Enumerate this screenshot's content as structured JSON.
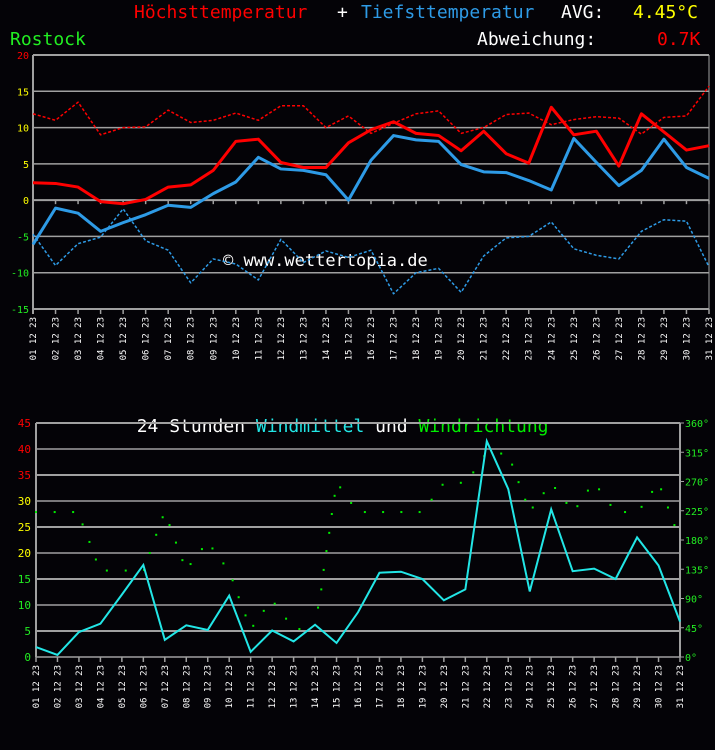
{
  "header": {
    "title_max": "Höchsttemperatur",
    "title_plus": "+",
    "title_min": "Tiefsttemperatur",
    "avg_label": "AVG:",
    "avg_value": "4.45°C",
    "location": "Rostock",
    "deviation_label": "Abweichung:",
    "deviation_value": "0.7K"
  },
  "colors": {
    "max": "#ff0000",
    "min": "#2e9be6",
    "wind": "#22e6e6",
    "direction": "#00ee00",
    "grid": "#a0a0a0"
  },
  "chart_data": [
    {
      "type": "line",
      "categories": [
        "01.12.23",
        "02.12.23",
        "03.12.23",
        "04.12.23",
        "05.12.23",
        "06.12.23",
        "07.12.23",
        "08.12.23",
        "09.12.23",
        "10.12.23",
        "11.12.23",
        "12.12.23",
        "13.12.23",
        "14.12.23",
        "15.12.23",
        "16.12.23",
        "17.12.23",
        "18.12.23",
        "19.12.23",
        "20.12.23",
        "21.12.23",
        "22.12.23",
        "23.12.23",
        "24.12.23",
        "25.12.23",
        "26.12.23",
        "27.12.23",
        "28.12.23",
        "29.12.23",
        "30.12.23",
        "31.12.23"
      ],
      "ylim": [
        -15,
        20
      ],
      "yticks": [
        20,
        15,
        10,
        5,
        0,
        -5,
        -10,
        -15
      ],
      "grid": true,
      "watermark": "© www.wettertopia.de",
      "series": [
        {
          "name": "Höchsttemperatur",
          "style": "solid",
          "color": "#ff0000",
          "values": [
            2.4,
            2.3,
            1.8,
            -0.2,
            -0.5,
            0.1,
            1.8,
            2.1,
            4.1,
            8.1,
            8.4,
            5.2,
            4.5,
            4.5,
            7.9,
            9.7,
            10.8,
            9.2,
            8.9,
            6.8,
            9.5,
            6.4,
            5.1,
            12.8,
            9.0,
            9.5,
            4.7,
            11.9,
            9.4,
            6.9,
            7.5
          ]
        },
        {
          "name": "Tiefsttemperatur",
          "style": "solid",
          "color": "#2e9be6",
          "values": [
            -6.1,
            -1.1,
            -1.8,
            -4.3,
            -3.1,
            -2.0,
            -0.7,
            -1.0,
            0.9,
            2.5,
            5.9,
            4.3,
            4.1,
            3.5,
            0.0,
            5.5,
            8.9,
            8.3,
            8.1,
            4.9,
            3.9,
            3.8,
            2.7,
            1.4,
            8.5,
            5.2,
            2.0,
            4.1,
            8.4,
            4.5,
            3.0
          ]
        },
        {
          "style": "dashed",
          "color": "#ff0000",
          "values": [
            11.9,
            11.0,
            13.5,
            9.0,
            10.0,
            10.1,
            12.4,
            10.7,
            11.0,
            12.0,
            11.0,
            13.0,
            13.0,
            10.0,
            11.6,
            9.2,
            10.6,
            11.9,
            12.3,
            9.2,
            10.0,
            11.8,
            12.0,
            10.4,
            11.1,
            11.5,
            11.3,
            9.1,
            11.4,
            11.6,
            15.7
          ]
        },
        {
          "style": "dashed",
          "color": "#2e9be6",
          "values": [
            -4.7,
            -9.0,
            -6.0,
            -5.1,
            -1.2,
            -5.6,
            -6.9,
            -11.4,
            -8.1,
            -8.8,
            -11.0,
            -5.4,
            -8.6,
            -7.0,
            -7.9,
            -6.9,
            -12.9,
            -10.0,
            -9.4,
            -12.7,
            -7.7,
            -5.2,
            -5.0,
            -3.0,
            -6.7,
            -7.6,
            -8.1,
            -4.3,
            -2.7,
            -2.9,
            -9.2
          ]
        }
      ]
    },
    {
      "type": "line",
      "title_parts": [
        "24 Stunden ",
        "Windmittel",
        " und ",
        "Windrichtung"
      ],
      "categories": [
        "01.12.23",
        "02.12.23",
        "03.12.23",
        "04.12.23",
        "05.12.23",
        "06.12.23",
        "07.12.23",
        "08.12.23",
        "09.12.23",
        "10.12.23",
        "11.12.23",
        "12.12.23",
        "13.12.23",
        "14.12.23",
        "15.12.23",
        "16.12.23",
        "17.12.23",
        "18.12.23",
        "19.12.23",
        "20.12.23",
        "21.12.23",
        "22.12.23",
        "23.12.23",
        "24.12.23",
        "25.12.23",
        "26.12.23",
        "27.12.23",
        "28.12.23",
        "29.12.23",
        "30.12.23",
        "31.12.23"
      ],
      "ylim": [
        0,
        45
      ],
      "yticks": [
        45,
        40,
        35,
        30,
        25,
        20,
        15,
        10,
        5,
        0
      ],
      "y2lim": [
        0,
        360
      ],
      "y2ticks": [
        "360°",
        "315°",
        "270°",
        "225°",
        "180°",
        "135°",
        "90°",
        "45°",
        "0°"
      ],
      "grid": true,
      "series": [
        {
          "name": "Windmittel",
          "color": "#22e6e6",
          "values": [
            1.9,
            0.4,
            4.8,
            6.4,
            12.0,
            17.7,
            3.3,
            6.1,
            5.2,
            11.8,
            1.0,
            5.1,
            3.0,
            6.2,
            2.7,
            8.6,
            16.2,
            16.4,
            15.0,
            10.9,
            13.0,
            41.5,
            32.3,
            12.6,
            28.4,
            16.5,
            17.0,
            15.0,
            23.0,
            17.6,
            6.8
          ]
        },
        {
          "name": "Windrichtung",
          "type": "scatter",
          "axis": "right",
          "color": "#00ee00",
          "points": [
            [
              0,
              223
            ],
            [
              0.87,
              223
            ],
            [
              1.73,
              223
            ],
            [
              2.17,
              204
            ],
            [
              2.49,
              177
            ],
            [
              2.79,
              150
            ],
            [
              3.3,
              133
            ],
            [
              4.18,
              133
            ],
            [
              5.03,
              134
            ],
            [
              5.3,
              160
            ],
            [
              5.6,
              188
            ],
            [
              5.9,
              215
            ],
            [
              6.22,
              203
            ],
            [
              6.52,
              176
            ],
            [
              6.82,
              149
            ],
            [
              7.2,
              143
            ],
            [
              7.73,
              166
            ],
            [
              8.22,
              167
            ],
            [
              8.73,
              144
            ],
            [
              9.16,
              118
            ],
            [
              9.44,
              92
            ],
            [
              9.76,
              64
            ],
            [
              10.12,
              48
            ],
            [
              10.61,
              71
            ],
            [
              11.12,
              82
            ],
            [
              11.65,
              59
            ],
            [
              12.27,
              43
            ],
            [
              13.14,
              76
            ],
            [
              13.29,
              104
            ],
            [
              13.4,
              134
            ],
            [
              13.53,
              163
            ],
            [
              13.66,
              191
            ],
            [
              13.78,
              220
            ],
            [
              13.91,
              248
            ],
            [
              14.17,
              261
            ],
            [
              14.68,
              237
            ],
            [
              15.32,
              223
            ],
            [
              16.17,
              223
            ],
            [
              17.02,
              223
            ],
            [
              17.87,
              223
            ],
            [
              18.43,
              242
            ],
            [
              18.94,
              265
            ],
            [
              19.79,
              268
            ],
            [
              20.37,
              284
            ],
            [
              20.88,
              309
            ],
            [
              21.67,
              313
            ],
            [
              22.18,
              296
            ],
            [
              22.48,
              269
            ],
            [
              22.79,
              242
            ],
            [
              23.14,
              230
            ],
            [
              23.65,
              252
            ],
            [
              24.18,
              260
            ],
            [
              24.71,
              237
            ],
            [
              25.22,
              232
            ],
            [
              25.71,
              256
            ],
            [
              26.23,
              258
            ],
            [
              26.76,
              234
            ],
            [
              27.44,
              223
            ],
            [
              28.21,
              231
            ],
            [
              28.7,
              254
            ],
            [
              29.12,
              258
            ],
            [
              29.44,
              230
            ],
            [
              29.74,
              203
            ]
          ]
        }
      ]
    }
  ]
}
